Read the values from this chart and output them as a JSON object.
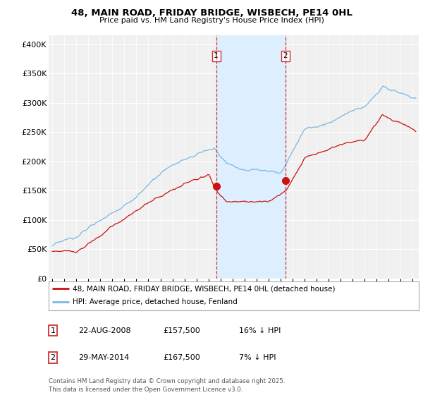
{
  "title1": "48, MAIN ROAD, FRIDAY BRIDGE, WISBECH, PE14 0HL",
  "title2": "Price paid vs. HM Land Registry's House Price Index (HPI)",
  "ylabel_ticks": [
    "£0",
    "£50K",
    "£100K",
    "£150K",
    "£200K",
    "£250K",
    "£300K",
    "£350K",
    "£400K"
  ],
  "ytick_vals": [
    0,
    50000,
    100000,
    150000,
    200000,
    250000,
    300000,
    350000,
    400000
  ],
  "ylim": [
    0,
    415000
  ],
  "xlim_start": 1994.7,
  "xlim_end": 2025.5,
  "transaction1": {
    "date_x": 2008.64,
    "price": 157500,
    "label": "1"
  },
  "transaction2": {
    "date_x": 2014.41,
    "price": 167500,
    "label": "2"
  },
  "shade_color": "#ddeeff",
  "vline_color": "#cc3333",
  "hpi_line_color": "#7ab8e0",
  "price_line_color": "#cc1111",
  "legend_label1": "48, MAIN ROAD, FRIDAY BRIDGE, WISBECH, PE14 0HL (detached house)",
  "legend_label2": "HPI: Average price, detached house, Fenland",
  "table_rows": [
    {
      "num": "1",
      "date": "22-AUG-2008",
      "price": "£157,500",
      "hpi": "16% ↓ HPI"
    },
    {
      "num": "2",
      "date": "29-MAY-2014",
      "price": "£167,500",
      "hpi": "7% ↓ HPI"
    }
  ],
  "footnote": "Contains HM Land Registry data © Crown copyright and database right 2025.\nThis data is licensed under the Open Government Licence v3.0.",
  "bg_color": "#ffffff",
  "plot_bg_color": "#f0f0f0"
}
